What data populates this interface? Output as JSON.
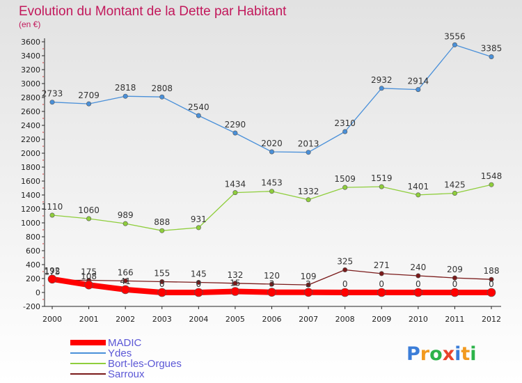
{
  "chart_data": {
    "type": "line",
    "title": "Evolution du Montant de la Dette par Habitant",
    "subtitle": "(en €)",
    "x": [
      "2000",
      "2001",
      "2002",
      "2003",
      "2004",
      "2005",
      "2006",
      "2007",
      "2008",
      "2009",
      "2010",
      "2011",
      "2012"
    ],
    "ylim": [
      -200,
      3600
    ],
    "yticks": [
      -200,
      0,
      200,
      400,
      600,
      800,
      1000,
      1200,
      1400,
      1600,
      1800,
      2000,
      2200,
      2400,
      2600,
      2800,
      3000,
      3200,
      3400,
      3600
    ],
    "grid": false,
    "legend_position": "bottom-left",
    "series": [
      {
        "name": "MADIC",
        "color": "#ff0000",
        "values": [
          192,
          108,
          41,
          0,
          0,
          15,
          3,
          2,
          0,
          0,
          0,
          0,
          0
        ],
        "labels": [
          "192",
          "108",
          "41",
          "0",
          "0",
          "15",
          "3",
          "2",
          "0",
          "0",
          "0",
          "0",
          "0"
        ]
      },
      {
        "name": "Ydes",
        "color": "#4a90d9",
        "values": [
          2733,
          2709,
          2818,
          2808,
          2540,
          2290,
          2020,
          2013,
          2310,
          2932,
          2914,
          3556,
          3385
        ],
        "labels": [
          "2733",
          "2709",
          "2818",
          "2808",
          "2540",
          "2290",
          "2020",
          "2013",
          "2310",
          "2932",
          "2914",
          "3556",
          "3385"
        ]
      },
      {
        "name": "Bort-les-Orgues",
        "color": "#8fce3c",
        "values": [
          1110,
          1060,
          989,
          888,
          931,
          1434,
          1453,
          1332,
          1509,
          1519,
          1401,
          1425,
          1548
        ],
        "labels": [
          "1110",
          "1060",
          "989",
          "888",
          "931",
          "1434",
          "1453",
          "1332",
          "1509",
          "1519",
          "1401",
          "1425",
          "1548"
        ]
      },
      {
        "name": "Sarroux",
        "color": "#7a1a1a",
        "values": [
          175,
          175,
          166,
          155,
          145,
          132,
          120,
          109,
          325,
          271,
          240,
          209,
          188
        ],
        "labels": [
          "175",
          "175",
          "166",
          "155",
          "145",
          "132",
          "120",
          "109",
          "325",
          "271",
          "240",
          "209",
          "188"
        ]
      }
    ]
  },
  "logo": {
    "letters": [
      "P",
      "r",
      "o",
      "x",
      "i",
      "t",
      "i"
    ],
    "colors": [
      "#3b7dd8",
      "#f29a1f",
      "#2db34a",
      "#e8432b",
      "#3b7dd8",
      "#f29a1f",
      "#2db34a"
    ]
  }
}
